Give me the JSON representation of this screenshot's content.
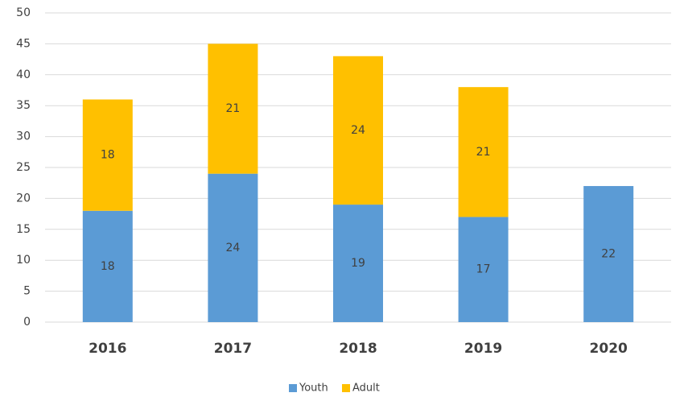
{
  "chart_data": {
    "type": "stacked_bar",
    "categories": [
      "2016",
      "2017",
      "2018",
      "2019",
      "2020"
    ],
    "series": [
      {
        "name": "Youth",
        "color": "#5b9bd5",
        "values": [
          18,
          24,
          19,
          17,
          22
        ]
      },
      {
        "name": "Adult",
        "color": "#ffc000",
        "values": [
          18,
          21,
          24,
          21,
          null
        ]
      }
    ],
    "ylim": [
      0,
      50
    ],
    "yticks": [
      0,
      5,
      10,
      15,
      20,
      25,
      30,
      35,
      40,
      45,
      50
    ],
    "grid": true,
    "legend": "bottom"
  }
}
